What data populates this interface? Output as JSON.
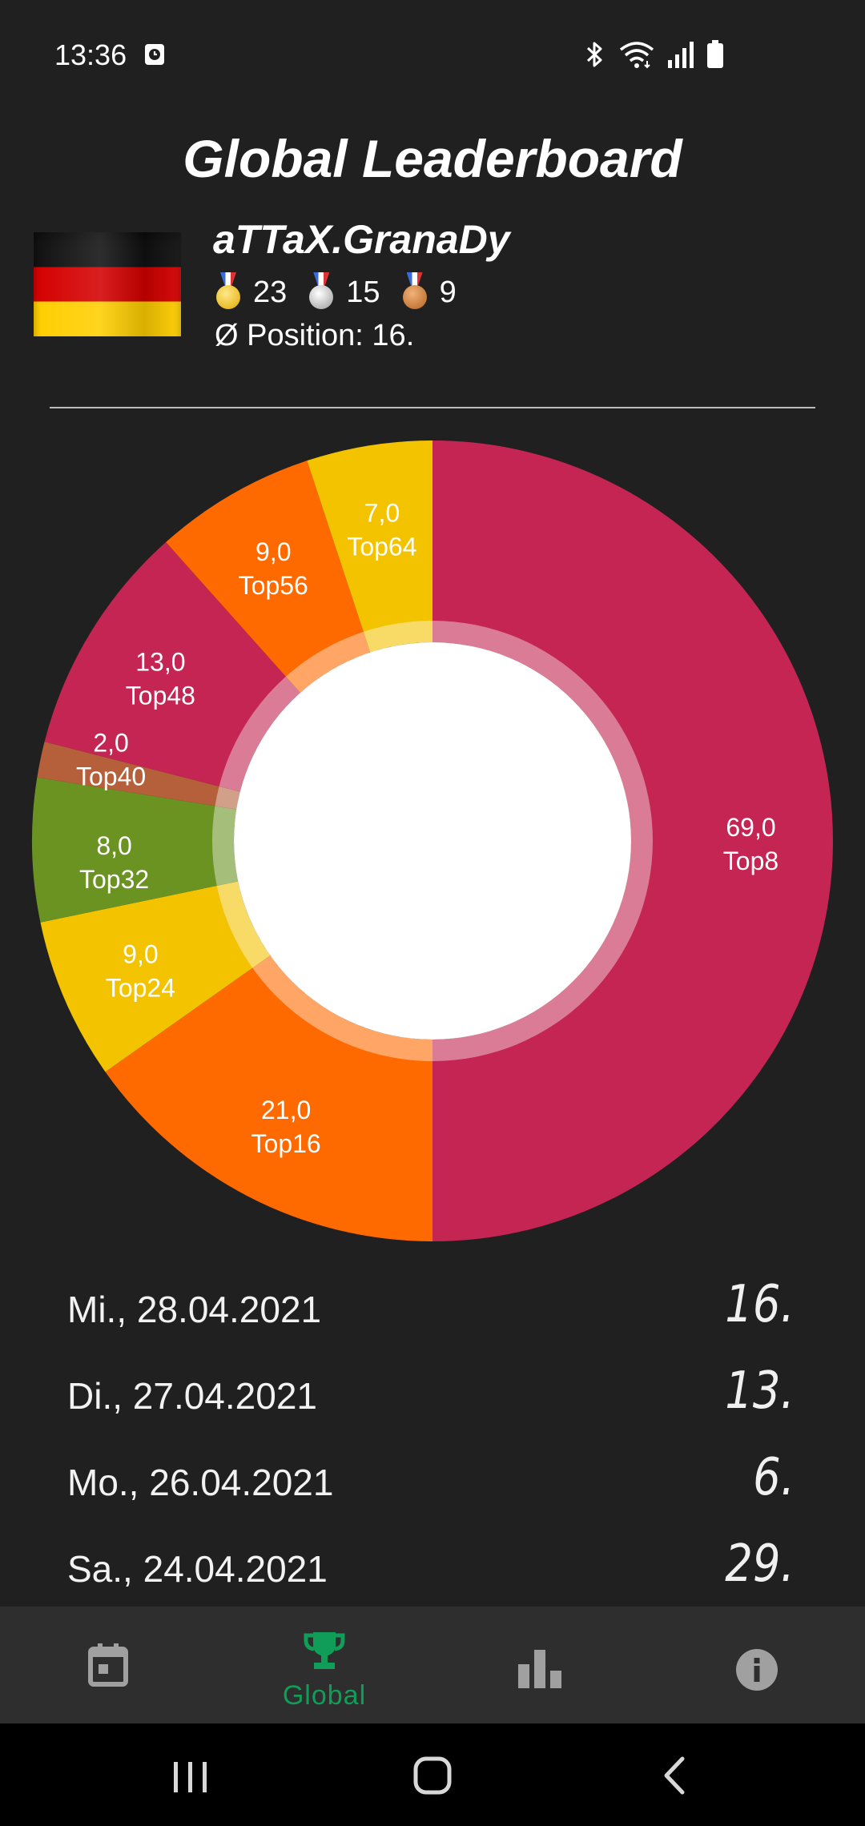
{
  "status_bar": {
    "time": "13:36"
  },
  "header": {
    "title": "Global Leaderboard"
  },
  "profile": {
    "username": "aTTaX.GranaDy",
    "medals": {
      "gold": "23",
      "silver": "15",
      "bronze": "9"
    },
    "avg_position": "Ø Position: 16."
  },
  "chart_data": {
    "type": "pie",
    "style": "donut",
    "slices": [
      {
        "label": "Top8",
        "value": 69.0,
        "value_label": "69,0",
        "color": "#c42553"
      },
      {
        "label": "Top16",
        "value": 21.0,
        "value_label": "21,0",
        "color": "#ff6a00"
      },
      {
        "label": "Top24",
        "value": 9.0,
        "value_label": "9,0",
        "color": "#f3c300"
      },
      {
        "label": "Top32",
        "value": 8.0,
        "value_label": "8,0",
        "color": "#6a9322"
      },
      {
        "label": "Top40",
        "value": 2.0,
        "value_label": "2,0",
        "color": "#b5603a"
      },
      {
        "label": "Top48",
        "value": 13.0,
        "value_label": "13,0",
        "color": "#c42553"
      },
      {
        "label": "Top56",
        "value": 9.0,
        "value_label": "9,0",
        "color": "#ff6a00"
      },
      {
        "label": "Top64",
        "value": 7.0,
        "value_label": "7,0",
        "color": "#f3c300"
      }
    ],
    "direction": "clockwise",
    "start": "top",
    "center_color": "#ffffff"
  },
  "history": [
    {
      "date": "Mi., 28.04.2021",
      "rank": "16."
    },
    {
      "date": "Di., 27.04.2021",
      "rank": "13."
    },
    {
      "date": "Mo., 26.04.2021",
      "rank": "6."
    },
    {
      "date": "Sa., 24.04.2021",
      "rank": "29."
    }
  ],
  "bottom_nav": {
    "items": [
      {
        "icon": "calendar-icon",
        "label": ""
      },
      {
        "icon": "trophy-icon",
        "label": "Global",
        "active": true
      },
      {
        "icon": "bar-chart-icon",
        "label": ""
      },
      {
        "icon": "info-icon",
        "label": ""
      }
    ],
    "active_color": "#0f9d58",
    "inactive_color": "#a0a0a0"
  },
  "system_nav": {
    "buttons": [
      "recent-apps-icon",
      "home-icon",
      "back-icon"
    ]
  }
}
